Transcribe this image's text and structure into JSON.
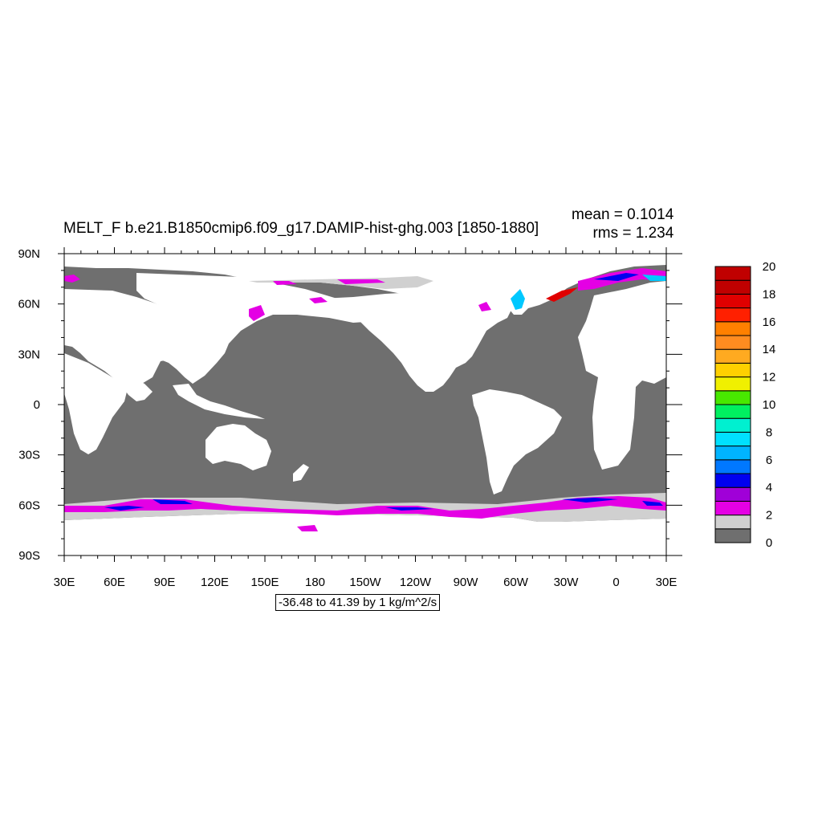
{
  "plot": {
    "title": "MELT_F b.e21.B1850cmip6.f09_g17.DAMIP-hist-ghg.003 [1850-1880]",
    "mean_text": "mean = 0.1014",
    "rms_text": "rms = 1.234",
    "range_text": "-36.48 to 41.39 by 1 kg/m^2/s"
  },
  "axes": {
    "lon_labels": [
      "30E",
      "60E",
      "90E",
      "120E",
      "150E",
      "180",
      "150W",
      "120W",
      "90W",
      "60W",
      "30W",
      "0",
      "30E"
    ],
    "lat_labels": [
      "90N",
      "60N",
      "30N",
      "0",
      "30S",
      "60S",
      "90S"
    ]
  },
  "colorbar": {
    "labels": [
      "0",
      "2",
      "4",
      "6",
      "8",
      "10",
      "12",
      "14",
      "16",
      "18",
      "20"
    ],
    "colors": [
      "#6f6f6f",
      "#d0d0d0",
      "#e400e4",
      "#a000d8",
      "#0000f0",
      "#0078ff",
      "#00b4ff",
      "#00e0ff",
      "#00f0d0",
      "#00f060",
      "#48e800",
      "#f0f000",
      "#ffd000",
      "#ffaa20",
      "#ff8c20",
      "#ff8000",
      "#ff2000",
      "#e00000",
      "#c00000"
    ]
  },
  "colors": {
    "ocean": "#6f6f6f",
    "land": "#ffffff",
    "shelf": "#d0d0d0",
    "low": "#e400e4",
    "mid": "#a000d8",
    "blue": "#0000f0",
    "cyan": "#00c8ff"
  }
}
